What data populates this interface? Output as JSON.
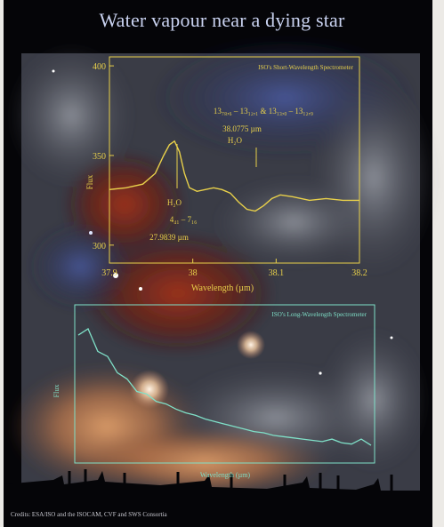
{
  "title": "Water vapour near a dying star",
  "credits": "Credits: ESA/ISO and the ISOCAM, CVF and SWS Consortia",
  "colors": {
    "short_plot": "#e8d04a",
    "long_plot": "#7fe0c8",
    "title": "#c9d2f0"
  },
  "chart_data": [
    {
      "type": "line",
      "title": "ISO's Short-Wavelength Spectrometer",
      "xlabel": "Wavelength (µm)",
      "ylabel": "Flux",
      "xlim": [
        37.9,
        38.2
      ],
      "ylim": [
        290,
        405
      ],
      "xticks": [
        "37.9",
        "38",
        "38.1",
        "38.2"
      ],
      "yticks": [
        "400",
        "350",
        "300"
      ],
      "series": [
        {
          "x": [
            37.9,
            37.92,
            37.94,
            37.955,
            37.965,
            37.972,
            37.978,
            37.984,
            37.99,
            37.996,
            38.005,
            38.015,
            38.025,
            38.035,
            38.045,
            38.055,
            38.065,
            38.075,
            38.085,
            38.095,
            38.105,
            38.12,
            38.14,
            38.16,
            38.18,
            38.2
          ],
          "values": [
            331,
            332,
            334,
            340,
            350,
            356,
            358,
            352,
            340,
            332,
            330,
            331,
            332,
            331,
            329,
            324,
            320,
            319,
            322,
            326,
            328,
            327,
            325,
            326,
            325,
            325
          ]
        }
      ],
      "annotations": [
        {
          "lines": [
            "13₇₈,₆ – 13₁₂,₁ & 13₁₃,₀ – 13₁₂,₉",
            "38.0775 µm",
            "H₂O"
          ]
        },
        {
          "lines": [
            "H₂O",
            "4₄₁ – 7₁₆",
            "27.9839 µm"
          ]
        }
      ]
    },
    {
      "type": "line",
      "title": "ISO's Long-Wavelength Spectrometer",
      "xlabel": "Wavelength (µm)",
      "ylabel": "Flux",
      "series": [
        {
          "x": [
            45,
            50,
            55,
            60,
            65,
            70,
            75,
            80,
            85,
            90,
            95,
            100,
            105,
            110,
            115,
            120,
            125,
            130,
            135,
            140,
            145,
            150,
            155,
            160,
            165,
            170,
            175,
            180,
            185,
            190,
            195
          ],
          "values": [
            0.95,
            1.0,
            0.82,
            0.78,
            0.65,
            0.6,
            0.5,
            0.48,
            0.42,
            0.4,
            0.36,
            0.33,
            0.31,
            0.28,
            0.26,
            0.24,
            0.22,
            0.2,
            0.18,
            0.17,
            0.15,
            0.14,
            0.13,
            0.12,
            0.11,
            0.1,
            0.12,
            0.09,
            0.08,
            0.12,
            0.07
          ]
        }
      ]
    }
  ]
}
